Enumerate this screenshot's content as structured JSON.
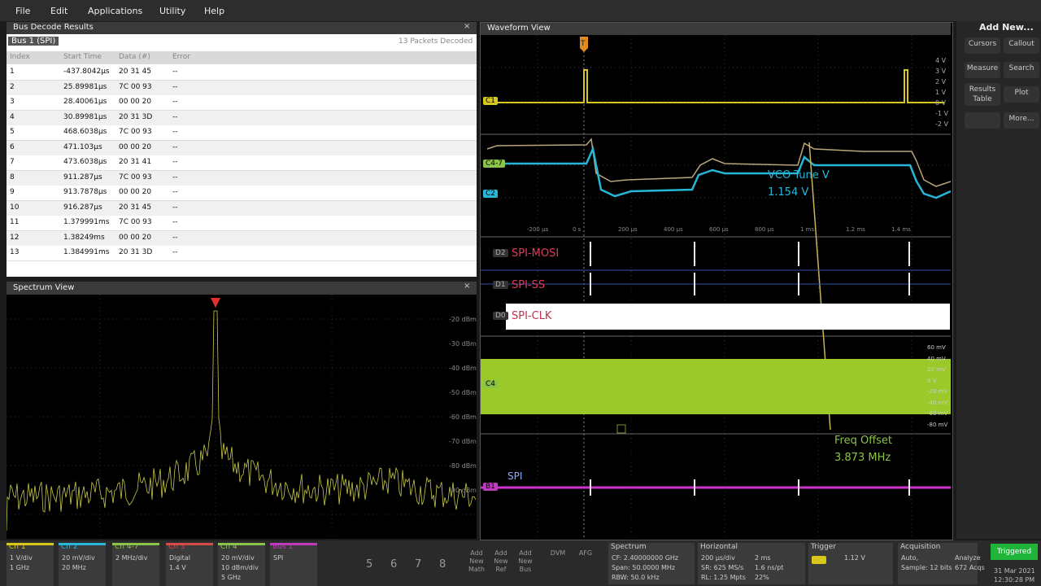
{
  "menu": [
    "File",
    "Edit",
    "Applications",
    "Utility",
    "Help"
  ],
  "bus_decode": {
    "title": "Bus Decode Results",
    "tab": "Bus 1 (SPI)",
    "status": "13 Packets Decoded",
    "columns": [
      "Index",
      "Start Time",
      "Data (#)",
      "Error"
    ],
    "rows": [
      [
        "1",
        "-437.8042µs",
        "20 31 45",
        "--"
      ],
      [
        "2",
        "25.89981µs",
        "7C 00 93",
        "--"
      ],
      [
        "3",
        "28.40061µs",
        "00 00 20",
        "--"
      ],
      [
        "4",
        "30.89981µs",
        "20 31 3D",
        "--"
      ],
      [
        "5",
        "468.6038µs",
        "7C 00 93",
        "--"
      ],
      [
        "6",
        "471.103µs",
        "00 00 20",
        "--"
      ],
      [
        "7",
        "473.6038µs",
        "20 31 41",
        "--"
      ],
      [
        "8",
        "911.287µs",
        "7C 00 93",
        "--"
      ],
      [
        "9",
        "913.7878µs",
        "00 00 20",
        "--"
      ],
      [
        "10",
        "916.287µs",
        "20 31 45",
        "--"
      ],
      [
        "11",
        "1.379991ms",
        "7C 00 93",
        "--"
      ],
      [
        "12",
        "1.38249ms",
        "00 00 20",
        "--"
      ],
      [
        "13",
        "1.384991ms",
        "20 31 3D",
        "--"
      ]
    ]
  },
  "spectrum_view": {
    "title": "Spectrum View",
    "y_labels": [
      "-20 dBm",
      "-30 dBm",
      "-40 dBm",
      "-50 dBm",
      "-60 dBm",
      "-70 dBm",
      "-80 dBm",
      "-90 dBm"
    ]
  },
  "waveform_view": {
    "title": "Waveform View",
    "trigger": "T",
    "c1_labels": [
      "4 V",
      "3 V",
      "2 V",
      "1 V",
      "0 V",
      "-1 V",
      "-2 V"
    ],
    "time_labels": [
      "-200 µs",
      "0 s",
      "200 µs",
      "400 µs",
      "600 µs",
      "800 µs",
      "1 ms",
      "1.2 ms",
      "1.4 ms"
    ],
    "c4_labels": [
      "60 mV",
      "40 mV",
      "20 mV",
      "0 V",
      "-20 mV",
      "-40 mV",
      "-60 mV",
      "-80 mV"
    ],
    "channel_tags": [
      "C1",
      "C4-7",
      "C2",
      "D2",
      "D1",
      "D0",
      "C4",
      "B1"
    ],
    "digital_names": [
      "SPI-MOSI",
      "SPI-SS",
      "SPI-CLK"
    ],
    "bus_name": "SPI",
    "vco_label": "VCO Tune V",
    "vco_value": "1.154 V",
    "freq_label": "Freq Offset",
    "freq_value": "3.873 MHz"
  },
  "right_panel": {
    "title": "Add New...",
    "buttons": [
      "Cursors",
      "Callout",
      "Measure",
      "Search",
      "Results Table",
      "Plot",
      "More..."
    ]
  },
  "bottom_bar": {
    "channels": [
      {
        "title": "Ch 1",
        "lines": [
          "1 V/div",
          "1 GHz"
        ],
        "color": "#d8c81e"
      },
      {
        "title": "Ch 2",
        "lines": [
          "20 mV/div",
          "20 MHz"
        ],
        "color": "#27b6d8"
      },
      {
        "title": "Ch 4-7",
        "lines": [
          "2 MHz/div"
        ],
        "color": "#8bc34a"
      },
      {
        "title": "Ch 3",
        "lines": [
          "Digital",
          "1.4 V"
        ],
        "color": "#d64a4a"
      },
      {
        "title": "Ch 4",
        "lines": [
          "20 mV/div",
          "10 dBm/div",
          "5 GHz"
        ],
        "color": "#8bc34a"
      },
      {
        "title": "Bus 1",
        "lines": [
          "SPI"
        ],
        "color": "#c03ac0"
      }
    ],
    "numbers": [
      "5",
      "6",
      "7",
      "8"
    ],
    "add_buttons": [
      "Add New Math",
      "Add New Ref",
      "Add New Bus",
      "DVM",
      "AFG"
    ],
    "groups": [
      {
        "title": "Spectrum",
        "lines": [
          "CF: 2.40000000 GHz",
          "Span: 50.0000 MHz",
          "RBW: 50.0 kHz"
        ]
      },
      {
        "title": "Horizontal",
        "lines": [
          "200 µs/div",
          "2 ms",
          "SR: 625 MS/s",
          "1.6 ns/pt",
          "RL: 1.25 Mpts",
          "22%"
        ]
      },
      {
        "title": "Trigger",
        "lines": [
          "1.12 V"
        ]
      },
      {
        "title": "Acquisition",
        "lines": [
          "Auto,",
          "Analyze",
          "Sample: 12 bits",
          "672 Acqs"
        ]
      }
    ],
    "status": "Triggered",
    "date": "31 Mar 2021",
    "time": "12:30:28 PM"
  }
}
